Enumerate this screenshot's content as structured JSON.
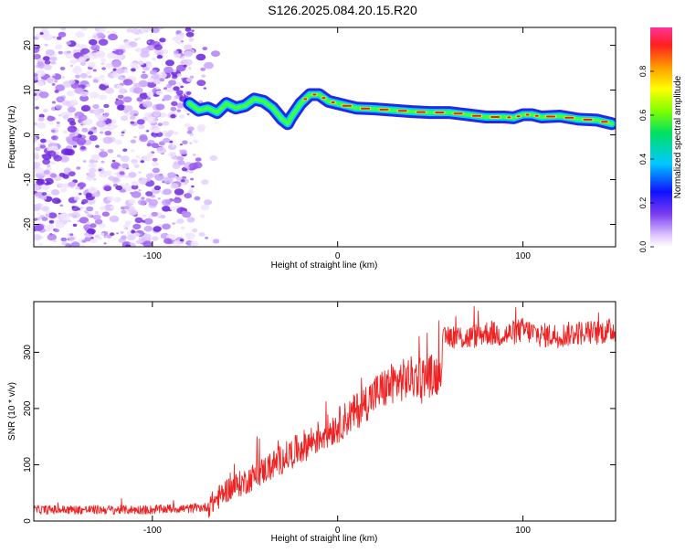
{
  "title": "S126.2025.084.20.15.R20",
  "colors": {
    "snr_line": "#ee2222",
    "ridge_core": "#e02020",
    "noise": "#9b5cf0"
  },
  "chart_data": [
    {
      "type": "heatmap",
      "xlabel": "Height of straight line (km)",
      "ylabel": "Frequency (Hz)",
      "xlim": [
        -164,
        150
      ],
      "ylim": [
        -25,
        24
      ],
      "xticks": [
        -100,
        0,
        100
      ],
      "yticks": [
        -20,
        -10,
        0,
        10,
        20
      ],
      "colorbar": {
        "label": "Normalized spectral amplitude",
        "range": [
          0,
          1
        ],
        "ticks": [
          "0.0",
          "0.2",
          "0.4",
          "0.6",
          "0.8"
        ]
      },
      "ridge": {
        "x": [
          -80,
          -75,
          -70,
          -65,
          -60,
          -55,
          -50,
          -45,
          -40,
          -35,
          -30,
          -27,
          -25,
          -20,
          -15,
          -10,
          -5,
          0,
          10,
          20,
          30,
          40,
          50,
          60,
          70,
          80,
          90,
          95,
          100,
          105,
          110,
          120,
          130,
          140,
          148
        ],
        "y": [
          7,
          5.5,
          6,
          5,
          7,
          6,
          6.5,
          8,
          7.5,
          6,
          3.5,
          2.5,
          4,
          7,
          9,
          9,
          7.5,
          7,
          6,
          5.8,
          5.5,
          5.2,
          5,
          5,
          4.5,
          4,
          4,
          3.8,
          4.5,
          4.5,
          4,
          4.2,
          3.5,
          3.3,
          2.5
        ]
      },
      "noise_region_x": [
        -164,
        -78
      ]
    },
    {
      "type": "line",
      "xlabel": "Height of straight line (km)",
      "ylabel": "SNR (10 * v/v)",
      "xlim": [
        -164,
        150
      ],
      "ylim": [
        0,
        390
      ],
      "xticks": [
        -100,
        0,
        100
      ],
      "yticks": [
        0,
        100,
        200,
        300
      ],
      "series": [
        {
          "x": [
            -164,
            -150,
            -140,
            -130,
            -120,
            -110,
            -100,
            -90,
            -80,
            -70,
            -65,
            -60,
            -50,
            -40,
            -30,
            -20,
            -10,
            0,
            10,
            20,
            30,
            40,
            50,
            55,
            57,
            60,
            70,
            80,
            90,
            100,
            110,
            120,
            130,
            140,
            150
          ],
          "y": [
            20,
            20,
            20,
            20,
            20,
            20,
            20,
            22,
            22,
            25,
            40,
            55,
            70,
            90,
            110,
            130,
            150,
            170,
            195,
            225,
            245,
            255,
            258,
            262,
            320,
            330,
            325,
            335,
            330,
            340,
            330,
            330,
            335,
            335,
            340
          ]
        }
      ]
    }
  ]
}
